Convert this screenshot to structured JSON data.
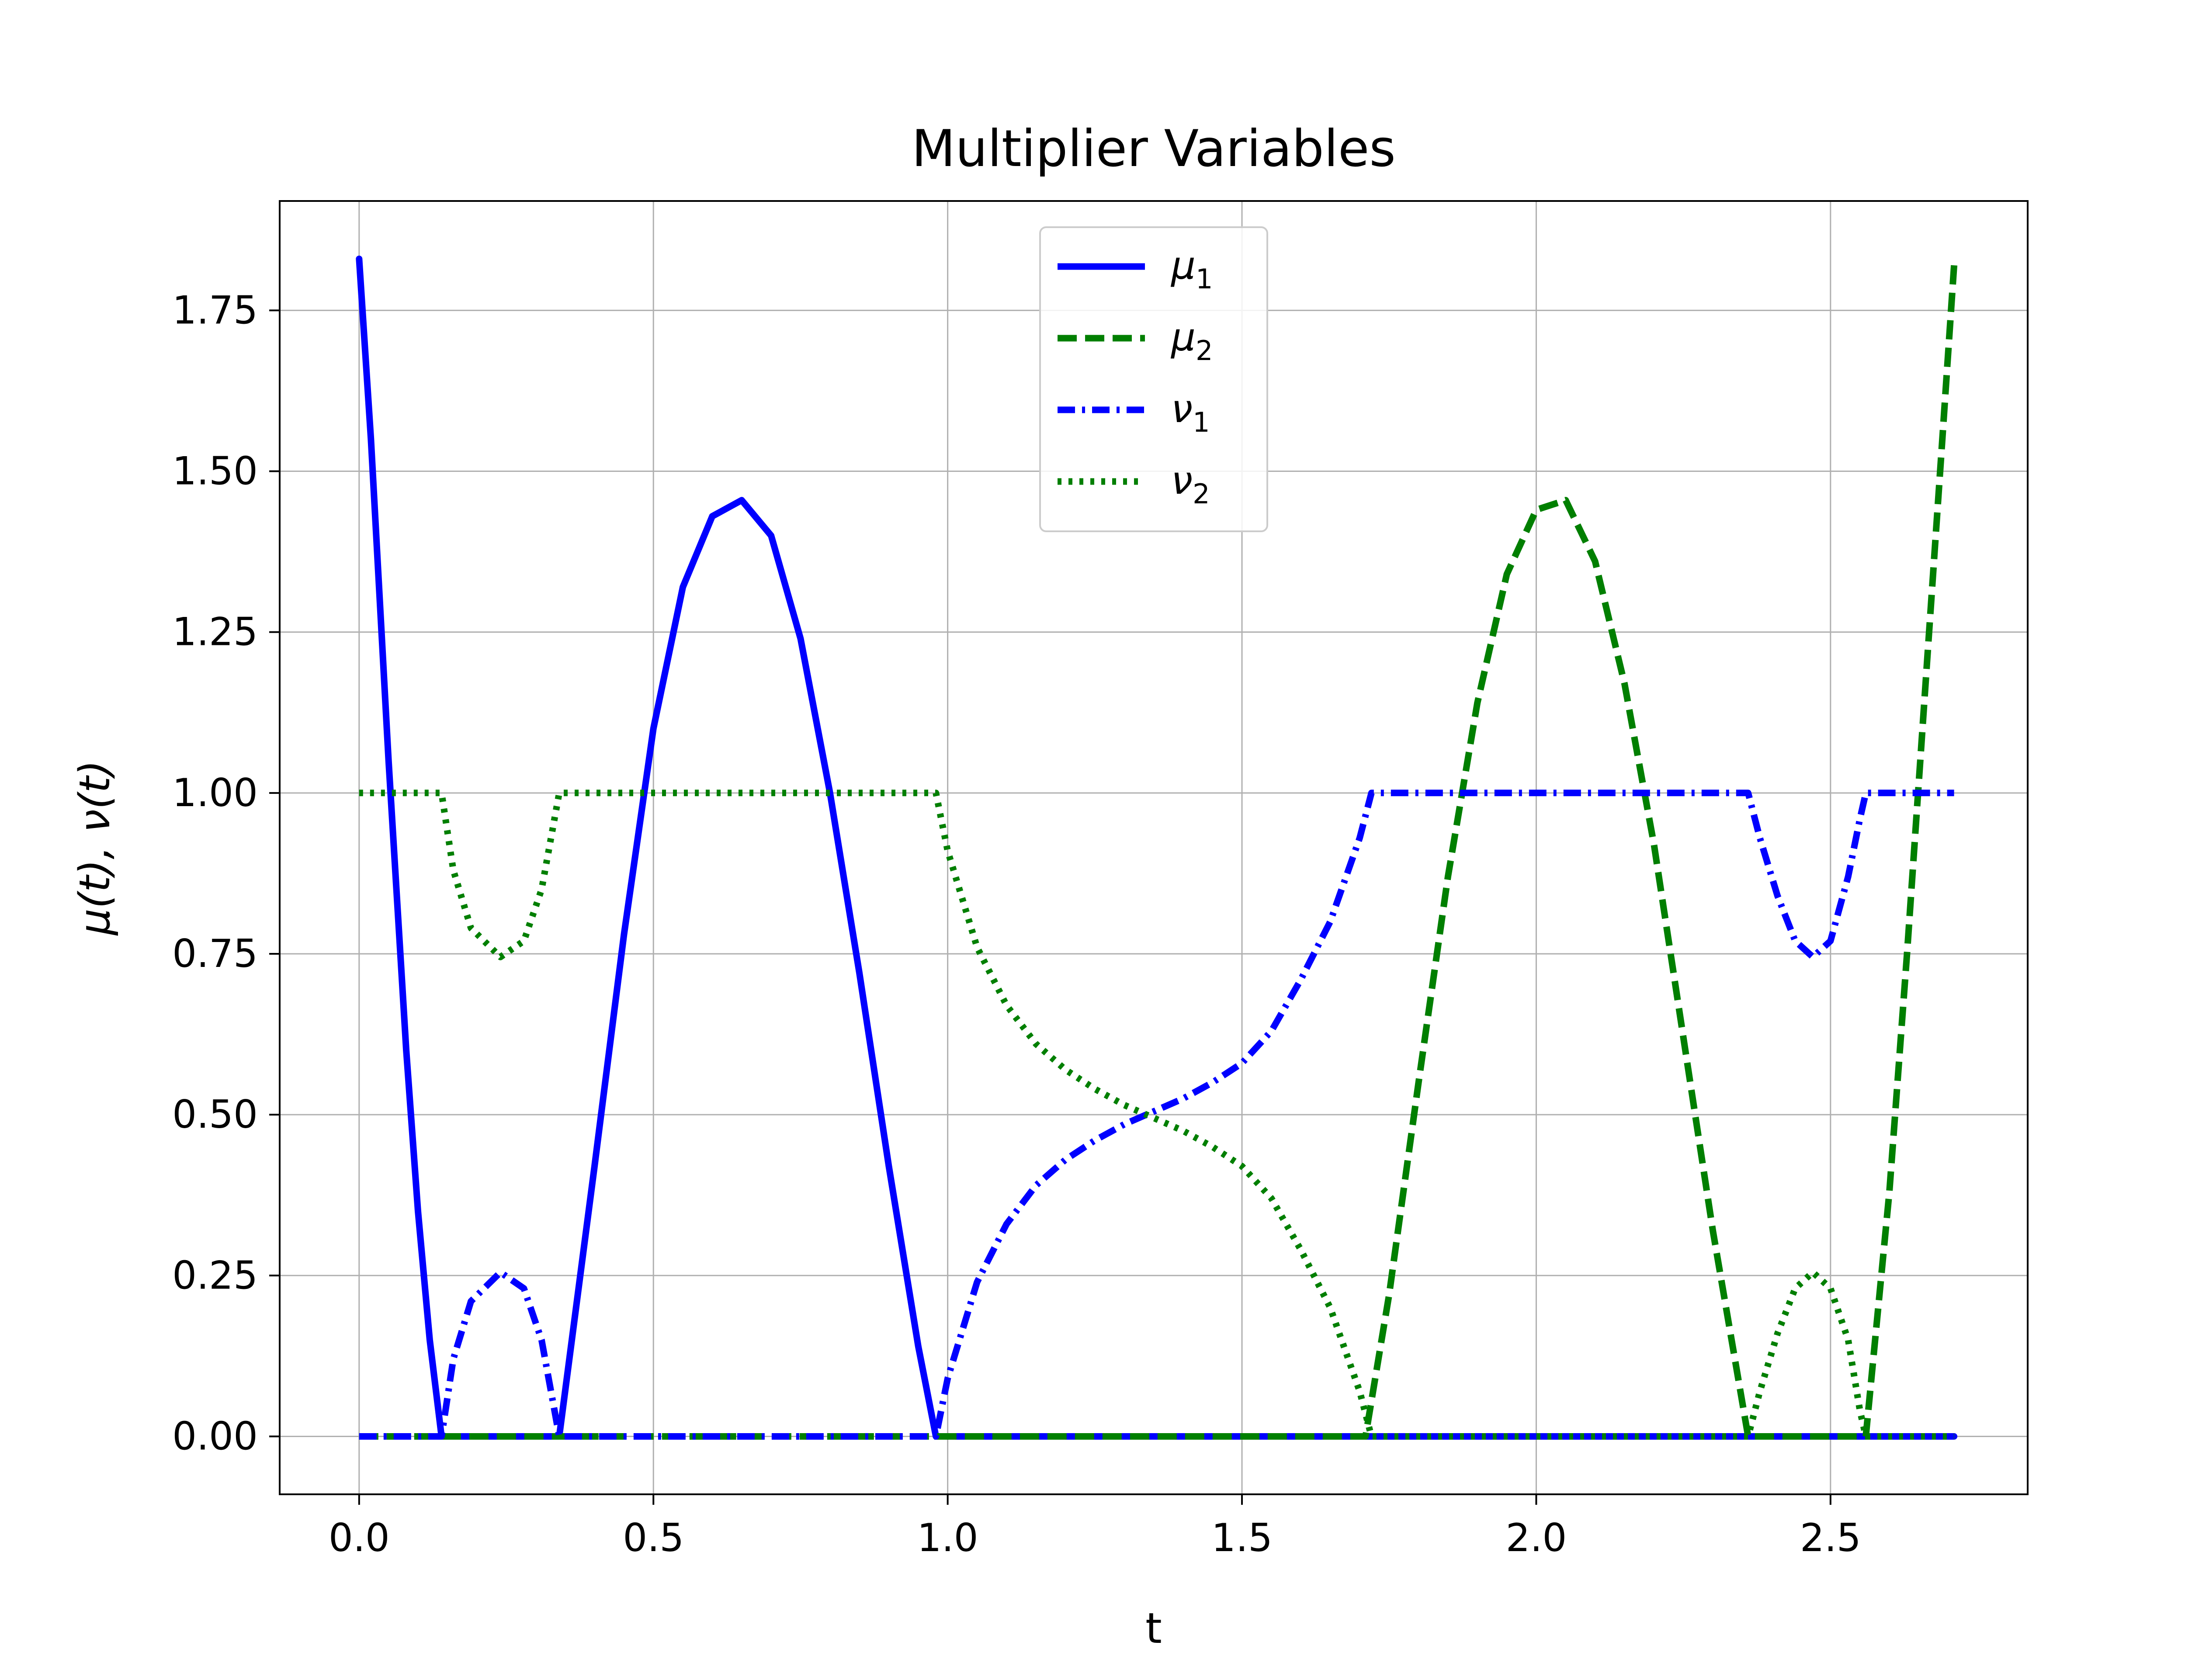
{
  "chart_data": {
    "type": "line",
    "title": "Multiplier Variables",
    "xlabel": "t",
    "ylabel": "μ(t), ν(t)",
    "xlim": [
      -0.135,
      2.835
    ],
    "ylim": [
      -0.09,
      1.92
    ],
    "xticks": [
      0.0,
      0.5,
      1.0,
      1.5,
      2.0,
      2.5
    ],
    "xtick_labels": [
      "0.0",
      "0.5",
      "1.0",
      "1.5",
      "2.0",
      "2.5"
    ],
    "yticks": [
      0.0,
      0.25,
      0.5,
      0.75,
      1.0,
      1.25,
      1.5,
      1.75
    ],
    "ytick_labels": [
      "0.00",
      "0.25",
      "0.50",
      "0.75",
      "1.00",
      "1.25",
      "1.50",
      "1.75"
    ],
    "grid": true,
    "legend_position": "upper center",
    "series": [
      {
        "name": "μ1",
        "label_base": "μ",
        "label_sub": "1",
        "color": "#0000ff",
        "style": "solid",
        "x": [
          0.0,
          0.02,
          0.05,
          0.08,
          0.1,
          0.12,
          0.14,
          0.34,
          0.4,
          0.45,
          0.5,
          0.55,
          0.6,
          0.65,
          0.7,
          0.75,
          0.8,
          0.85,
          0.9,
          0.95,
          0.98,
          2.71
        ],
        "y": [
          1.83,
          1.55,
          1.05,
          0.6,
          0.35,
          0.15,
          0.0,
          0.0,
          0.42,
          0.78,
          1.1,
          1.32,
          1.43,
          1.455,
          1.4,
          1.24,
          1.0,
          0.72,
          0.42,
          0.14,
          0.0,
          0.0
        ]
      },
      {
        "name": "μ2",
        "label_base": "μ",
        "label_sub": "2",
        "color": "#007f00",
        "style": "dashed",
        "x": [
          0.0,
          1.71,
          1.75,
          1.8,
          1.85,
          1.9,
          1.95,
          2.0,
          2.05,
          2.1,
          2.15,
          2.2,
          2.25,
          2.3,
          2.36,
          2.56,
          2.6,
          2.63,
          2.66,
          2.69,
          2.71
        ],
        "y": [
          0.0,
          0.0,
          0.22,
          0.55,
          0.87,
          1.14,
          1.34,
          1.44,
          1.455,
          1.36,
          1.17,
          0.92,
          0.62,
          0.32,
          0.0,
          0.0,
          0.38,
          0.75,
          1.15,
          1.55,
          1.82
        ]
      },
      {
        "name": "ν1",
        "label_base": "ν",
        "label_sub": "1",
        "color": "#0000ff",
        "style": "dashdot",
        "x": [
          0.0,
          0.14,
          0.16,
          0.19,
          0.24,
          0.28,
          0.31,
          0.34,
          0.98,
          1.0,
          1.05,
          1.1,
          1.15,
          1.2,
          1.25,
          1.3,
          1.35,
          1.4,
          1.45,
          1.5,
          1.55,
          1.6,
          1.65,
          1.7,
          1.72,
          2.36,
          2.38,
          2.41,
          2.44,
          2.47,
          2.5,
          2.53,
          2.55,
          2.56,
          2.71
        ],
        "y": [
          0.0,
          0.0,
          0.12,
          0.21,
          0.255,
          0.23,
          0.15,
          0.0,
          0.0,
          0.09,
          0.24,
          0.33,
          0.39,
          0.43,
          0.46,
          0.485,
          0.505,
          0.525,
          0.55,
          0.58,
          0.63,
          0.71,
          0.8,
          0.93,
          1.0,
          1.0,
          0.93,
          0.84,
          0.77,
          0.745,
          0.77,
          0.87,
          0.96,
          1.0,
          1.0
        ]
      },
      {
        "name": "ν2",
        "label_base": "ν",
        "label_sub": "2",
        "color": "#007f00",
        "style": "dotted",
        "x": [
          0.0,
          0.14,
          0.16,
          0.19,
          0.24,
          0.28,
          0.31,
          0.34,
          0.98,
          1.0,
          1.05,
          1.1,
          1.15,
          1.2,
          1.25,
          1.3,
          1.35,
          1.4,
          1.45,
          1.5,
          1.55,
          1.6,
          1.65,
          1.7,
          1.72,
          2.36,
          2.38,
          2.41,
          2.44,
          2.47,
          2.5,
          2.53,
          2.55,
          2.56,
          2.71
        ],
        "y": [
          1.0,
          1.0,
          0.88,
          0.79,
          0.745,
          0.77,
          0.85,
          1.0,
          1.0,
          0.91,
          0.76,
          0.67,
          0.61,
          0.57,
          0.54,
          0.515,
          0.495,
          0.475,
          0.45,
          0.42,
          0.37,
          0.29,
          0.2,
          0.07,
          0.0,
          0.0,
          0.07,
          0.16,
          0.23,
          0.255,
          0.23,
          0.15,
          0.04,
          0.0,
          0.0
        ]
      }
    ]
  }
}
